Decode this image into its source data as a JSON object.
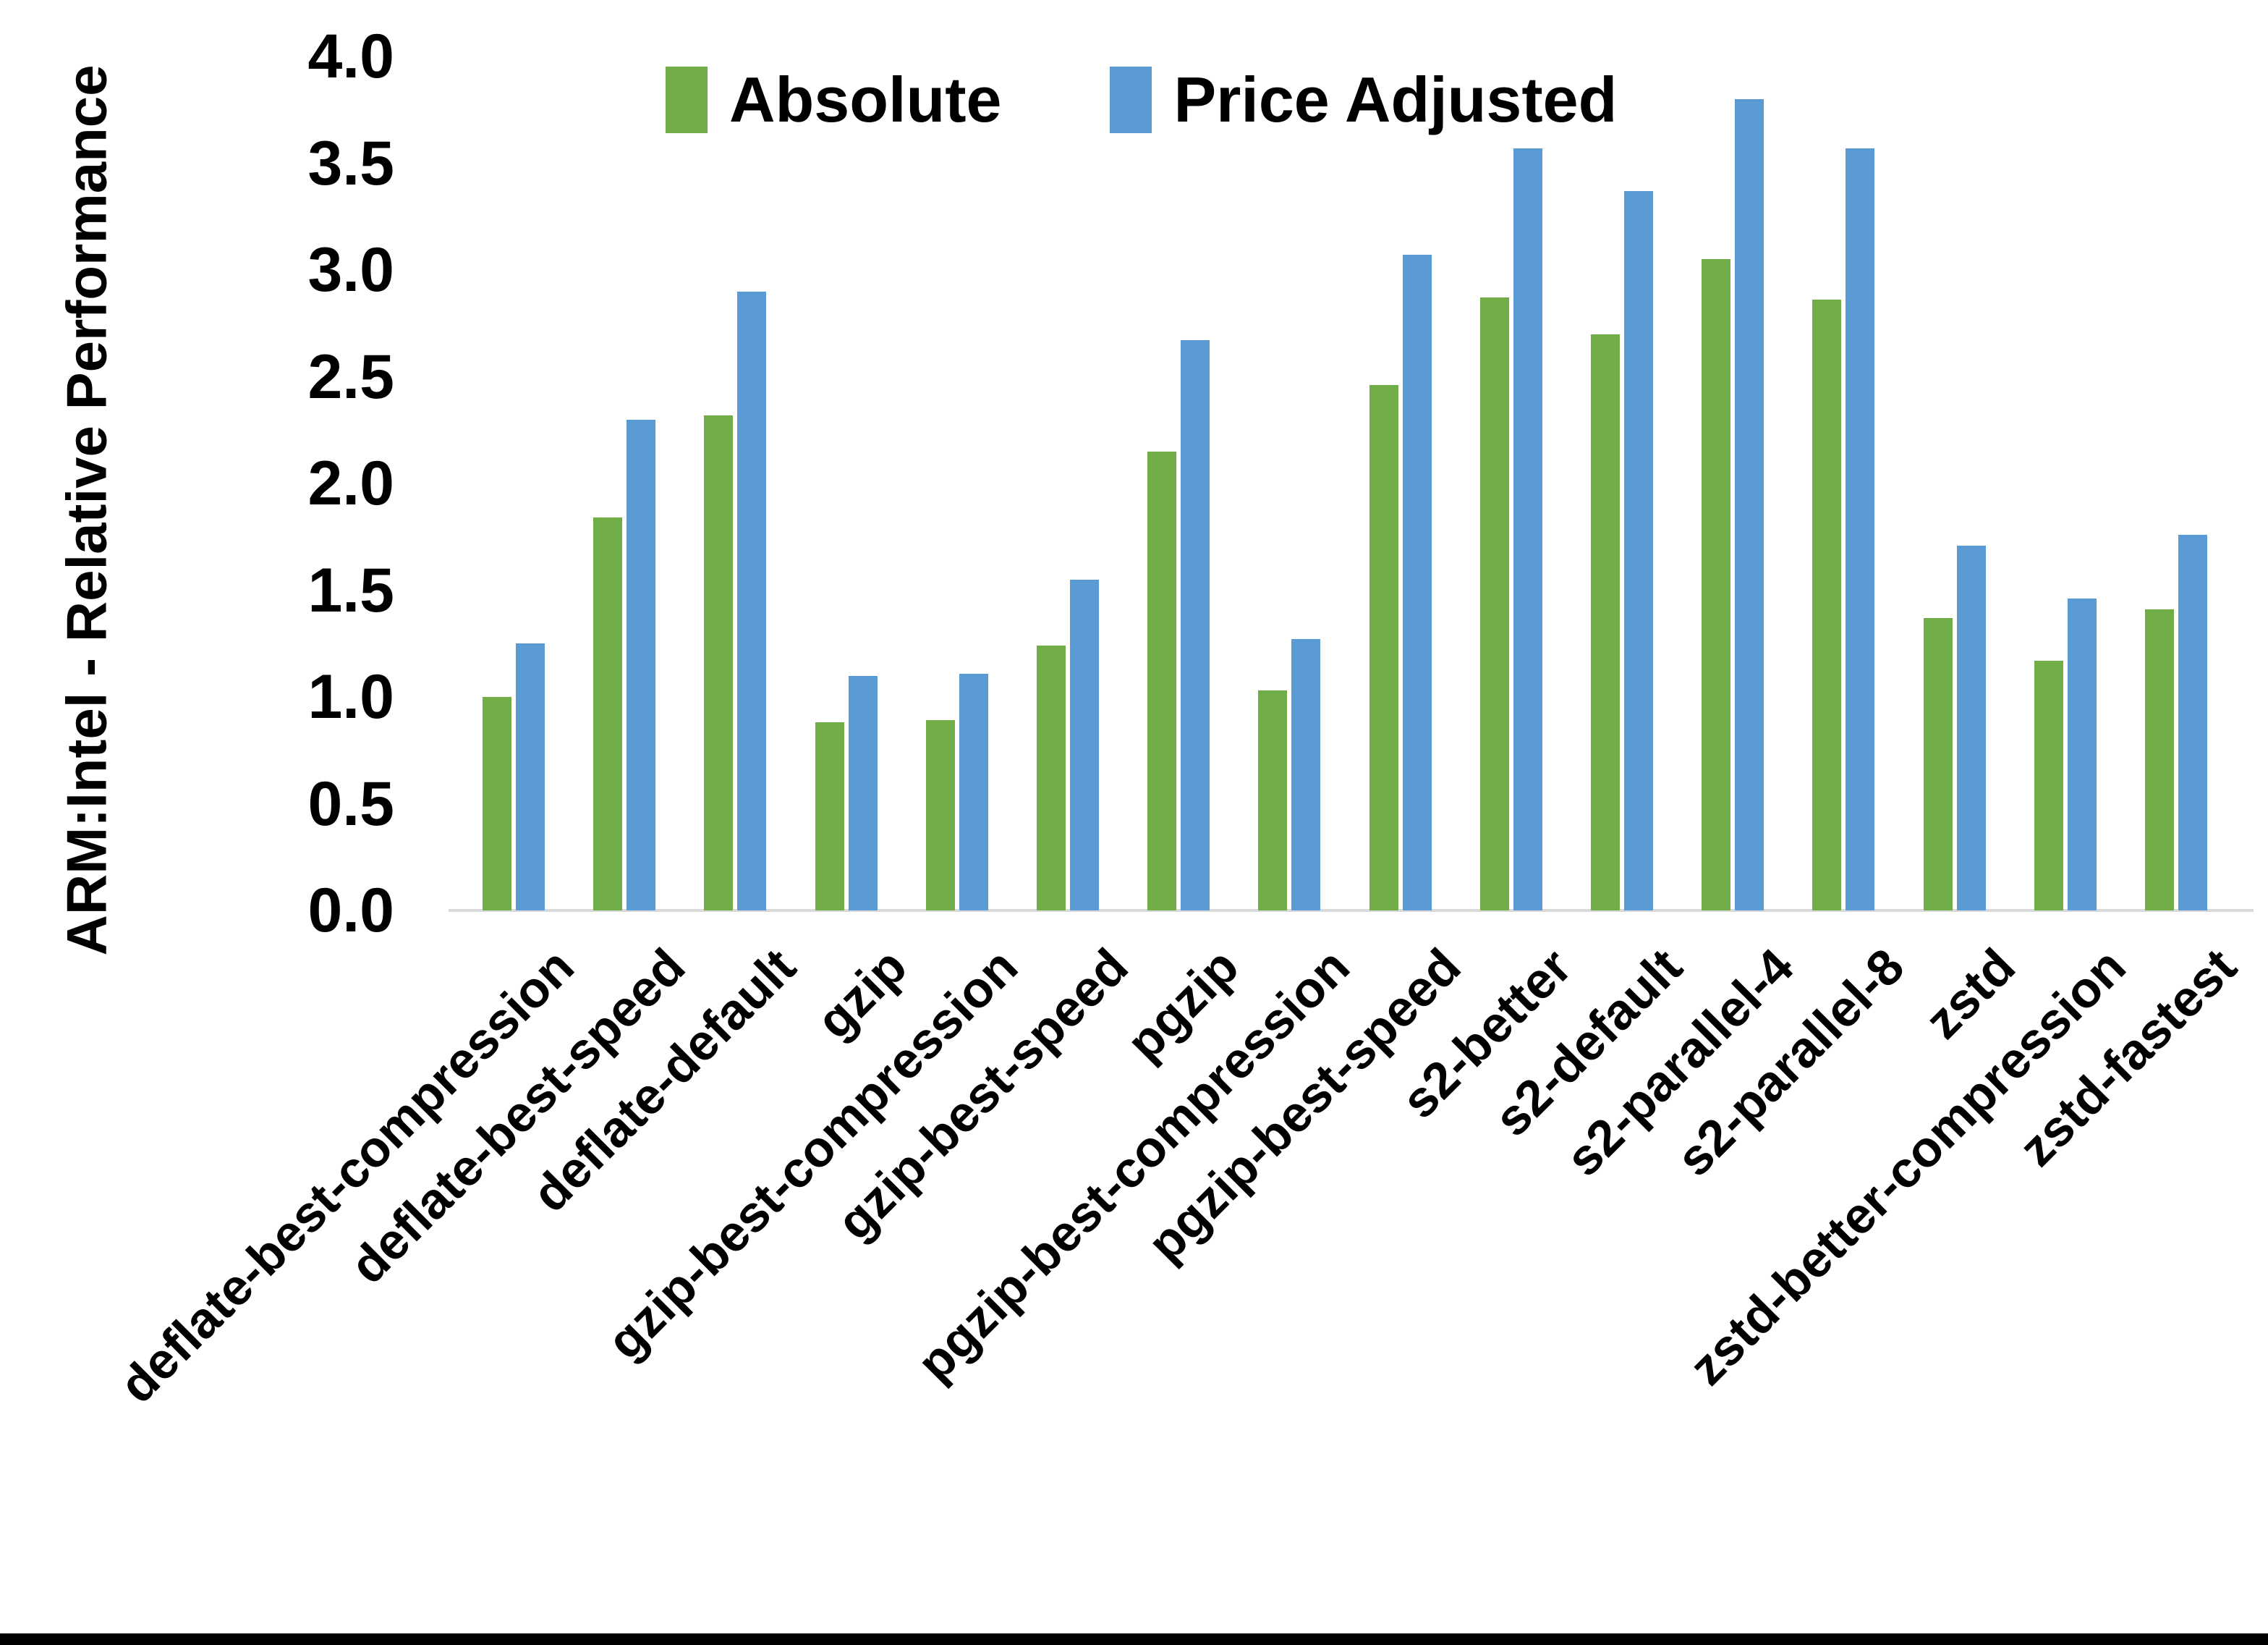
{
  "page": {
    "background": "#FFFFFF",
    "bottom_border_color": "#000000",
    "axis_line_color": "#D9D9D9",
    "text_color": "#000000"
  },
  "chart_data": {
    "type": "bar",
    "title": "",
    "xlabel": "",
    "ylabel": "ARM:Intel - Relative Performance",
    "ylim": [
      0.0,
      4.0
    ],
    "ytick_step": 0.5,
    "yticks": [
      "0.0",
      "0.5",
      "1.0",
      "1.5",
      "2.0",
      "2.5",
      "3.0",
      "3.5",
      "4.0"
    ],
    "grid": false,
    "legend_position": "top-center",
    "categories": [
      "deflate-best-compression",
      "deflate-best-speed",
      "deflate-default",
      "gzip",
      "gzip-best-compression",
      "gzip-best-speed",
      "pgzip",
      "pgzip-best-compression",
      "pgzip-best-speed",
      "s2-better",
      "s2-default",
      "s2-parallel-4",
      "s2-parallel-8",
      "zstd",
      "zstd-better-compression",
      "zstd-fastest"
    ],
    "series": [
      {
        "name": "Absolute",
        "color": "#70AD47",
        "values": [
          1.0,
          1.84,
          2.32,
          0.88,
          0.89,
          1.24,
          2.15,
          1.03,
          2.46,
          2.87,
          2.7,
          3.05,
          2.86,
          1.37,
          1.17,
          1.41
        ]
      },
      {
        "name": "Price Adjusted",
        "color": "#5B9BD5",
        "values": [
          1.25,
          2.3,
          2.9,
          1.1,
          1.11,
          1.55,
          2.67,
          1.27,
          3.07,
          3.57,
          3.37,
          3.8,
          3.57,
          1.71,
          1.46,
          1.76
        ]
      }
    ]
  }
}
